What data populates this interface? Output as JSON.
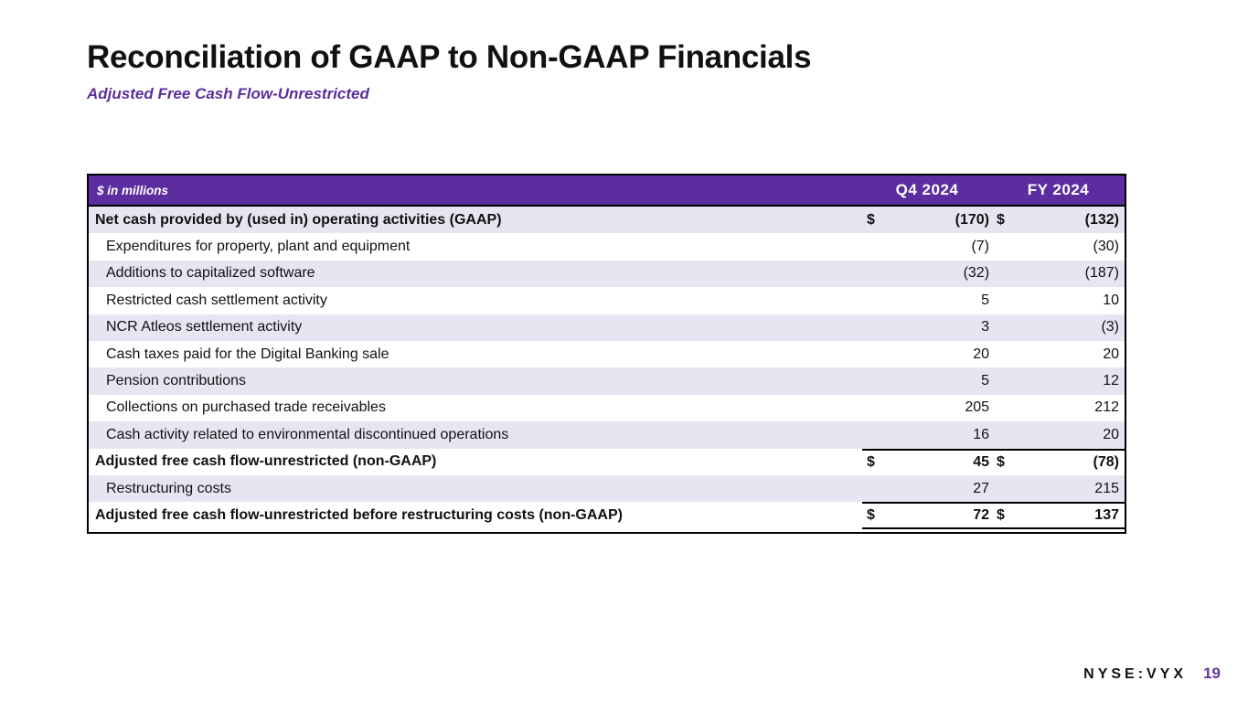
{
  "slide": {
    "title": "Reconciliation of GAAP to Non-GAAP Financials",
    "subtitle": "Adjusted Free Cash Flow-Unrestricted"
  },
  "colors": {
    "brand_purple": "#5c2d9e",
    "row_shade": "#e7e5f1",
    "page_number_purple": "#6633a2",
    "ink": "#111111"
  },
  "table": {
    "unit_label": "$ in millions",
    "col_q4": "Q4 2024",
    "col_fy": "FY 2024",
    "rows": [
      {
        "label": "Net cash provided by (used in) operating activities (GAAP)",
        "q4_dollar": "$",
        "q4": "(170)",
        "fy_dollar": "$",
        "fy": "(132)",
        "bold": true,
        "indent": false,
        "shade": true
      },
      {
        "label": "Expenditures for property, plant and equipment",
        "q4_dollar": "",
        "q4": "(7)",
        "fy_dollar": "",
        "fy": "(30)",
        "bold": false,
        "indent": true,
        "shade": false
      },
      {
        "label": "Additions to capitalized software",
        "q4_dollar": "",
        "q4": "(32)",
        "fy_dollar": "",
        "fy": "(187)",
        "bold": false,
        "indent": true,
        "shade": true
      },
      {
        "label": "Restricted cash settlement activity",
        "q4_dollar": "",
        "q4": "5",
        "fy_dollar": "",
        "fy": "10",
        "bold": false,
        "indent": true,
        "shade": false
      },
      {
        "label": "NCR Atleos settlement activity",
        "q4_dollar": "",
        "q4": "3",
        "fy_dollar": "",
        "fy": "(3)",
        "bold": false,
        "indent": true,
        "shade": true
      },
      {
        "label": "Cash taxes paid for the Digital Banking sale",
        "q4_dollar": "",
        "q4": "20",
        "fy_dollar": "",
        "fy": "20",
        "bold": false,
        "indent": true,
        "shade": false
      },
      {
        "label": "Pension contributions",
        "q4_dollar": "",
        "q4": "5",
        "fy_dollar": "",
        "fy": "12",
        "bold": false,
        "indent": true,
        "shade": true
      },
      {
        "label": "Collections on purchased trade receivables",
        "q4_dollar": "",
        "q4": "205",
        "fy_dollar": "",
        "fy": "212",
        "bold": false,
        "indent": true,
        "shade": false
      },
      {
        "label": "Cash activity related to environmental discontinued operations",
        "q4_dollar": "",
        "q4": "16",
        "fy_dollar": "",
        "fy": "20",
        "bold": false,
        "indent": true,
        "shade": true
      },
      {
        "label": "Adjusted free cash flow-unrestricted (non-GAAP)",
        "q4_dollar": "$",
        "q4": "45",
        "fy_dollar": "$",
        "fy": "(78)",
        "bold": true,
        "indent": false,
        "shade": false,
        "line_above": true
      },
      {
        "label": "Restructuring costs",
        "q4_dollar": "",
        "q4": "27",
        "fy_dollar": "",
        "fy": "215",
        "bold": false,
        "indent": true,
        "shade": true
      },
      {
        "label": "Adjusted free cash flow-unrestricted before restructuring costs (non-GAAP)",
        "q4_dollar": "$",
        "q4": "72",
        "fy_dollar": "$",
        "fy": "137",
        "bold": true,
        "indent": false,
        "shade": false,
        "line_above": true,
        "line_below": true
      }
    ]
  },
  "footer": {
    "ticker": "NYSE:VYX",
    "page_number": "19"
  }
}
